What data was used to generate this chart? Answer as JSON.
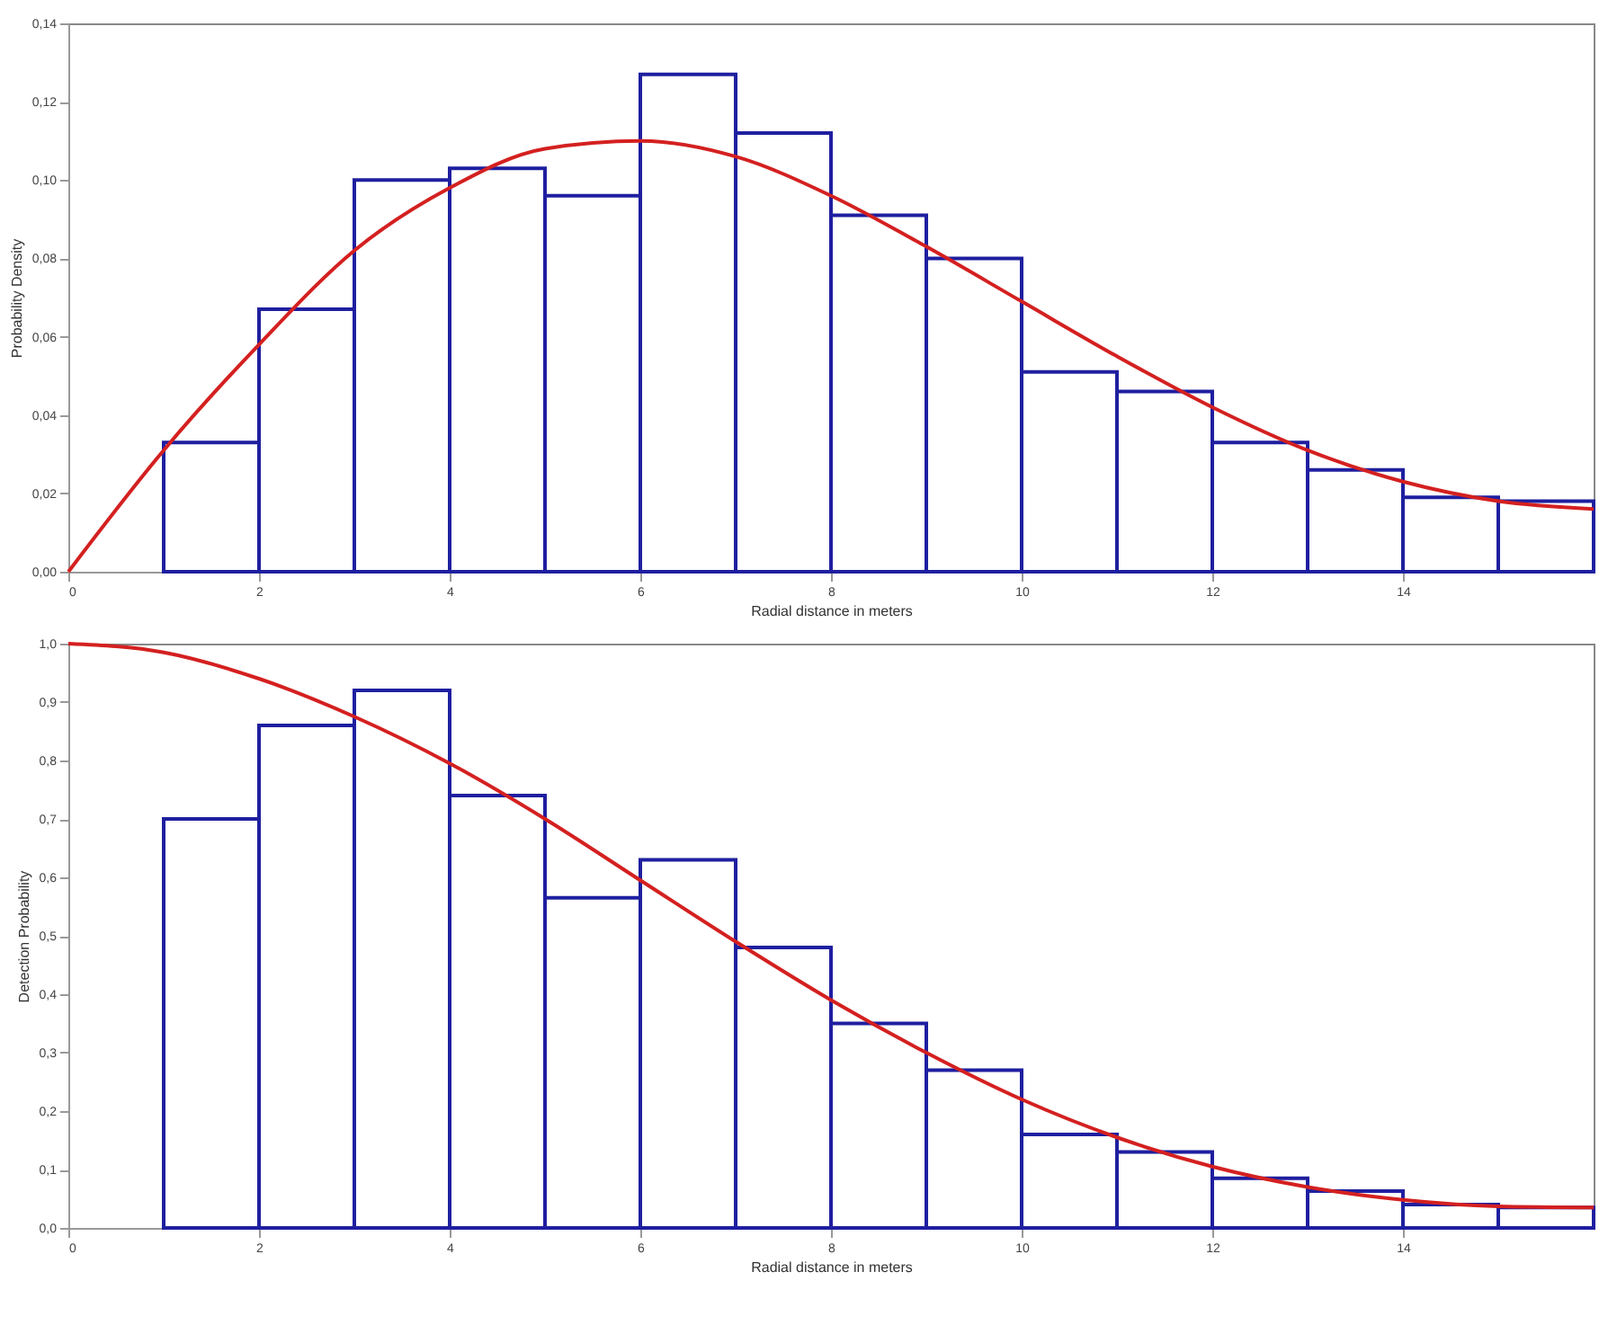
{
  "chart_data": [
    {
      "type": "histogram",
      "xlabel": "Radial distance in meters",
      "ylabel": "Probability Density",
      "bins": [
        1,
        2,
        3,
        4,
        5,
        6,
        7,
        8,
        9,
        10,
        11,
        12,
        13,
        14,
        15,
        16
      ],
      "xlim": [
        0,
        16
      ],
      "xticks": [
        0,
        2,
        4,
        6,
        8,
        10,
        12,
        14
      ],
      "ylim": [
        0,
        0.14
      ],
      "yticks": [
        {
          "value": 0,
          "label": "0,00"
        },
        {
          "value": 0.02,
          "label": "0,02"
        },
        {
          "value": 0.04,
          "label": "0,04"
        },
        {
          "value": 0.06,
          "label": "0,06"
        },
        {
          "value": 0.08,
          "label": "0,08"
        },
        {
          "value": 0.1,
          "label": "0,10"
        },
        {
          "value": 0.12,
          "label": "0,12"
        },
        {
          "value": 0.14,
          "label": "0,14"
        }
      ],
      "grid": false,
      "marker": "none",
      "series": [
        {
          "type": "histogram",
          "color": "#1f1fa0",
          "values": [
            0.033,
            0.067,
            0.1,
            0.103,
            0.096,
            0.127,
            0.112,
            0.091,
            0.08,
            0.051,
            0.046,
            0.033,
            0.026,
            0.019,
            0.018
          ]
        },
        {
          "type": "line",
          "color": "#d42020",
          "x": [
            0,
            1,
            2,
            3,
            4,
            5,
            6,
            7,
            8,
            9,
            10,
            11,
            12,
            13,
            14,
            15,
            16
          ],
          "values": [
            0,
            0.031,
            0.058,
            0.082,
            0.098,
            0.108,
            0.11,
            0.106,
            0.096,
            0.083,
            0.069,
            0.055,
            0.042,
            0.031,
            0.023,
            0.018,
            0.016
          ]
        }
      ]
    },
    {
      "type": "histogram",
      "xlabel": "Radial distance in meters",
      "ylabel": "Detection Probability",
      "bins": [
        1,
        2,
        3,
        4,
        5,
        6,
        7,
        8,
        9,
        10,
        11,
        12,
        13,
        14,
        15,
        16
      ],
      "xlim": [
        0,
        16
      ],
      "xticks": [
        0,
        2,
        4,
        6,
        8,
        10,
        12,
        14
      ],
      "ylim": [
        0,
        1
      ],
      "yticks": [
        {
          "value": 0,
          "label": "0,0"
        },
        {
          "value": 0.1,
          "label": "0,1"
        },
        {
          "value": 0.2,
          "label": "0,2"
        },
        {
          "value": 0.3,
          "label": "0,3"
        },
        {
          "value": 0.4,
          "label": "0,4"
        },
        {
          "value": 0.5,
          "label": "0,5"
        },
        {
          "value": 0.6,
          "label": "0,6"
        },
        {
          "value": 0.7,
          "label": "0,7"
        },
        {
          "value": 0.8,
          "label": "0,8"
        },
        {
          "value": 0.9,
          "label": "0,9"
        },
        {
          "value": 1,
          "label": "1,0"
        }
      ],
      "grid": false,
      "marker": "none",
      "series": [
        {
          "type": "histogram",
          "color": "#1f1fa0",
          "values": [
            0.7,
            0.86,
            0.92,
            0.74,
            0.565,
            0.63,
            0.48,
            0.35,
            0.27,
            0.16,
            0.13,
            0.085,
            0.063,
            0.04,
            0.035
          ]
        },
        {
          "type": "line",
          "color": "#d42020",
          "x": [
            0,
            1,
            2,
            3,
            4,
            5,
            6,
            7,
            8,
            9,
            10,
            11,
            12,
            13,
            14,
            15,
            16
          ],
          "values": [
            1,
            0.985,
            0.94,
            0.875,
            0.795,
            0.7,
            0.595,
            0.49,
            0.39,
            0.3,
            0.22,
            0.155,
            0.105,
            0.07,
            0.048,
            0.037,
            0.035
          ]
        }
      ]
    }
  ]
}
